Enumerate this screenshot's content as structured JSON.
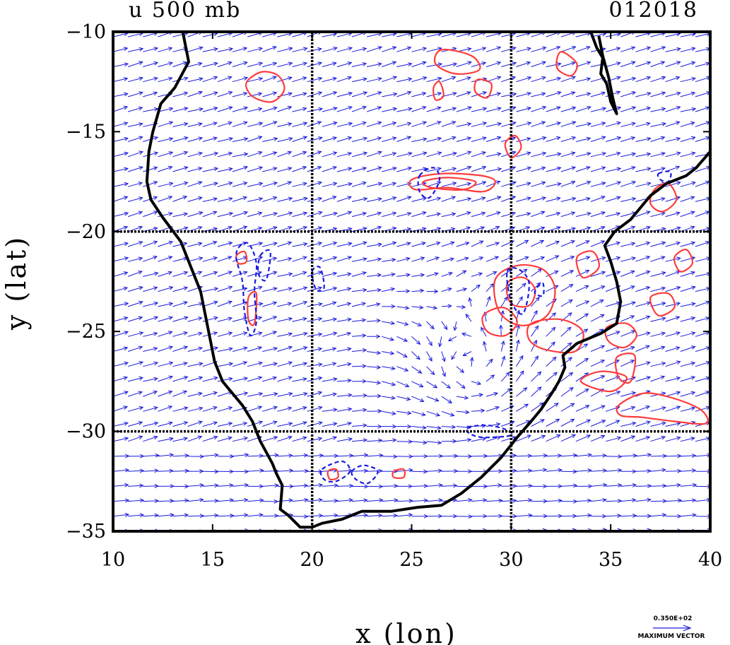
{
  "chart_data": {
    "type": "vector-contour-map",
    "title_left": "u 500 mb",
    "title_right": "012018",
    "xlabel": "x (lon)",
    "ylabel": "y (lat)",
    "xlim": [
      10,
      40
    ],
    "ylim": [
      -35,
      -10
    ],
    "x_ticks": [
      10,
      15,
      20,
      25,
      30,
      35,
      40
    ],
    "y_ticks": [
      -10,
      -15,
      -20,
      -25,
      -30,
      -35
    ],
    "grid_x": [
      20,
      30
    ],
    "grid_y": [
      -20,
      -30
    ],
    "legend": {
      "value": "0.350E+02",
      "label": "MAXIMUM VECTOR"
    },
    "colors": {
      "vectors": "#1a1adb",
      "positive_contours": "#ff3b3b",
      "negative_contours": "#1a1adb",
      "coastline": "#000000",
      "grid": "#000000"
    },
    "coastline": [
      [
        13.5,
        -10
      ],
      [
        13.8,
        -11.5
      ],
      [
        13.1,
        -12.8
      ],
      [
        12.4,
        -13.6
      ],
      [
        12.0,
        -15.0
      ],
      [
        11.8,
        -16.0
      ],
      [
        11.7,
        -17.5
      ],
      [
        11.9,
        -18.4
      ],
      [
        12.5,
        -19.3
      ],
      [
        13.4,
        -20.5
      ],
      [
        14.0,
        -22.0
      ],
      [
        14.4,
        -23.0
      ],
      [
        14.8,
        -25.0
      ],
      [
        15.1,
        -26.5
      ],
      [
        15.5,
        -27.5
      ],
      [
        16.5,
        -28.7
      ],
      [
        17.0,
        -29.5
      ],
      [
        17.4,
        -30.5
      ],
      [
        18.0,
        -31.6
      ],
      [
        18.2,
        -32.1
      ],
      [
        18.5,
        -32.7
      ],
      [
        18.4,
        -33.9
      ],
      [
        18.8,
        -34.2
      ],
      [
        19.4,
        -34.8
      ],
      [
        20.0,
        -34.8
      ],
      [
        20.5,
        -34.6
      ],
      [
        21.5,
        -34.4
      ],
      [
        22.5,
        -34.0
      ],
      [
        24.0,
        -34.0
      ],
      [
        25.3,
        -33.8
      ],
      [
        26.5,
        -33.7
      ],
      [
        27.5,
        -33.1
      ],
      [
        28.5,
        -32.3
      ],
      [
        29.5,
        -31.3
      ],
      [
        30.3,
        -30.3
      ],
      [
        31.0,
        -29.5
      ],
      [
        31.5,
        -28.9
      ],
      [
        32.1,
        -28.0
      ],
      [
        32.4,
        -27.5
      ],
      [
        32.7,
        -26.8
      ],
      [
        32.6,
        -26.2
      ],
      [
        33.3,
        -25.6
      ],
      [
        34.5,
        -25.1
      ],
      [
        35.3,
        -24.6
      ],
      [
        35.5,
        -23.5
      ],
      [
        35.3,
        -22.5
      ],
      [
        35.0,
        -21.5
      ],
      [
        34.7,
        -20.7
      ],
      [
        35.2,
        -20.0
      ],
      [
        36.0,
        -19.4
      ],
      [
        37.0,
        -18.2
      ],
      [
        37.8,
        -17.6
      ],
      [
        38.8,
        -17.2
      ],
      [
        39.3,
        -16.8
      ],
      [
        40.0,
        -16.0
      ]
    ],
    "lake": [
      [
        34.0,
        -10.0
      ],
      [
        34.3,
        -10.8
      ],
      [
        34.6,
        -11.3
      ],
      [
        34.5,
        -12.1
      ],
      [
        34.8,
        -12.6
      ],
      [
        35.0,
        -13.5
      ],
      [
        35.3,
        -14.1
      ],
      [
        35.1,
        -13.3
      ],
      [
        34.9,
        -12.3
      ],
      [
        34.6,
        -11.2
      ],
      [
        34.4,
        -10.2
      ]
    ],
    "vortex_center": [
      28.0,
      -27.0
    ],
    "positive_contours": [
      [
        [
          16.8,
          -12.4
        ],
        [
          17.5,
          -12.0
        ],
        [
          18.3,
          -12.2
        ],
        [
          18.6,
          -12.9
        ],
        [
          18.0,
          -13.5
        ],
        [
          17.1,
          -13.3
        ],
        [
          16.7,
          -12.8
        ]
      ],
      [
        [
          26.5,
          -10.9
        ],
        [
          28.0,
          -11.2
        ],
        [
          28.4,
          -11.9
        ],
        [
          27.2,
          -12.1
        ],
        [
          26.2,
          -11.6
        ]
      ],
      [
        [
          28.3,
          -12.4
        ],
        [
          29.0,
          -12.6
        ],
        [
          28.8,
          -13.3
        ],
        [
          28.2,
          -13.0
        ]
      ],
      [
        [
          32.5,
          -11.0
        ],
        [
          33.3,
          -11.6
        ],
        [
          33.0,
          -12.2
        ],
        [
          32.3,
          -11.8
        ]
      ],
      [
        [
          25.0,
          -17.4
        ],
        [
          26.5,
          -17.1
        ],
        [
          28.5,
          -17.2
        ],
        [
          29.2,
          -17.5
        ],
        [
          28.6,
          -18.0
        ],
        [
          26.8,
          -17.8
        ],
        [
          25.2,
          -17.9
        ]
      ],
      [
        [
          25.6,
          -17.5
        ],
        [
          26.8,
          -17.3
        ],
        [
          28.2,
          -17.5
        ],
        [
          27.6,
          -17.9
        ],
        [
          26.0,
          -17.8
        ]
      ],
      [
        [
          29.7,
          -15.6
        ],
        [
          30.2,
          -15.2
        ],
        [
          30.5,
          -15.8
        ],
        [
          30.0,
          -16.3
        ]
      ],
      [
        [
          29.2,
          -22.4
        ],
        [
          30.3,
          -21.7
        ],
        [
          31.6,
          -21.9
        ],
        [
          32.2,
          -22.9
        ],
        [
          31.8,
          -24.2
        ],
        [
          30.5,
          -24.7
        ],
        [
          29.4,
          -24.0
        ]
      ],
      [
        [
          29.8,
          -22.6
        ],
        [
          30.6,
          -22.3
        ],
        [
          31.2,
          -22.9
        ],
        [
          30.9,
          -23.7
        ],
        [
          30.0,
          -23.6
        ]
      ],
      [
        [
          28.6,
          -24.2
        ],
        [
          29.6,
          -23.8
        ],
        [
          30.3,
          -24.5
        ],
        [
          29.7,
          -25.2
        ],
        [
          28.8,
          -25.0
        ]
      ],
      [
        [
          31.0,
          -24.6
        ],
        [
          32.5,
          -24.4
        ],
        [
          33.6,
          -25.0
        ],
        [
          33.2,
          -26.0
        ],
        [
          31.7,
          -25.9
        ],
        [
          30.9,
          -25.4
        ]
      ],
      [
        [
          33.3,
          -21.3
        ],
        [
          34.1,
          -21.0
        ],
        [
          34.4,
          -21.8
        ],
        [
          33.6,
          -22.3
        ]
      ],
      [
        [
          34.8,
          -24.8
        ],
        [
          35.8,
          -24.6
        ],
        [
          36.3,
          -25.2
        ],
        [
          35.7,
          -25.8
        ],
        [
          34.9,
          -25.5
        ]
      ],
      [
        [
          35.3,
          -26.3
        ],
        [
          36.2,
          -26.2
        ],
        [
          36.0,
          -27.5
        ],
        [
          35.4,
          -27.3
        ]
      ],
      [
        [
          37.0,
          -23.3
        ],
        [
          37.9,
          -23.1
        ],
        [
          38.2,
          -23.8
        ],
        [
          37.4,
          -24.2
        ]
      ],
      [
        [
          37.2,
          -17.9
        ],
        [
          37.9,
          -17.6
        ],
        [
          38.3,
          -18.4
        ],
        [
          37.6,
          -19.0
        ],
        [
          37.0,
          -18.6
        ]
      ],
      [
        [
          38.2,
          -21.3
        ],
        [
          38.8,
          -20.9
        ],
        [
          39.1,
          -21.6
        ],
        [
          38.5,
          -22.0
        ]
      ],
      [
        [
          33.5,
          -27.5
        ],
        [
          34.5,
          -27.0
        ],
        [
          35.8,
          -27.3
        ],
        [
          35.0,
          -28.0
        ]
      ],
      [
        [
          35.4,
          -28.7
        ],
        [
          36.6,
          -28.1
        ],
        [
          38.0,
          -28.3
        ],
        [
          39.5,
          -28.9
        ],
        [
          39.8,
          -29.6
        ],
        [
          38.2,
          -29.5
        ],
        [
          36.6,
          -29.3
        ],
        [
          35.5,
          -29.2
        ]
      ],
      [
        [
          16.2,
          -21.2
        ],
        [
          16.6,
          -21.0
        ],
        [
          16.7,
          -21.5
        ],
        [
          16.3,
          -21.6
        ]
      ],
      [
        [
          16.8,
          -23.3
        ],
        [
          17.2,
          -23.1
        ],
        [
          17.1,
          -24.6
        ],
        [
          16.8,
          -24.4
        ]
      ],
      [
        [
          24.1,
          -32.0
        ],
        [
          24.6,
          -31.9
        ],
        [
          24.6,
          -32.3
        ],
        [
          24.1,
          -32.3
        ]
      ],
      [
        [
          20.8,
          -32.0
        ],
        [
          21.2,
          -31.9
        ],
        [
          21.3,
          -32.3
        ],
        [
          20.9,
          -32.4
        ]
      ],
      [
        [
          26.1,
          -12.8
        ],
        [
          26.4,
          -12.5
        ],
        [
          26.6,
          -13.2
        ],
        [
          26.2,
          -13.4
        ]
      ]
    ],
    "negative_contours": [
      [
        [
          16.3,
          -20.8
        ],
        [
          16.8,
          -20.6
        ],
        [
          17.2,
          -21.6
        ],
        [
          17.1,
          -23.0
        ],
        [
          17.2,
          -24.5
        ],
        [
          16.9,
          -25.2
        ],
        [
          16.6,
          -24.0
        ],
        [
          16.5,
          -22.5
        ],
        [
          16.2,
          -21.4
        ]
      ],
      [
        [
          17.4,
          -21.2
        ],
        [
          17.9,
          -21.0
        ],
        [
          17.7,
          -22.4
        ],
        [
          17.3,
          -22.1
        ]
      ],
      [
        [
          25.4,
          -17.2
        ],
        [
          26.1,
          -16.8
        ],
        [
          26.4,
          -17.4
        ],
        [
          25.9,
          -18.3
        ],
        [
          25.4,
          -18.0
        ]
      ],
      [
        [
          29.8,
          -22.0
        ],
        [
          30.4,
          -21.9
        ],
        [
          30.9,
          -22.6
        ],
        [
          30.6,
          -24.1
        ],
        [
          30.0,
          -23.5
        ]
      ],
      [
        [
          31.3,
          -22.8
        ],
        [
          31.6,
          -22.6
        ],
        [
          31.6,
          -23.2
        ],
        [
          31.2,
          -23.1
        ]
      ],
      [
        [
          27.8,
          -29.8
        ],
        [
          28.8,
          -29.7
        ],
        [
          29.7,
          -29.9
        ],
        [
          30.0,
          -30.2
        ],
        [
          28.6,
          -30.3
        ],
        [
          27.9,
          -30.1
        ]
      ],
      [
        [
          20.5,
          -31.9
        ],
        [
          21.5,
          -31.5
        ],
        [
          21.9,
          -32.0
        ],
        [
          21.2,
          -32.5
        ],
        [
          20.6,
          -32.4
        ]
      ],
      [
        [
          22.0,
          -32.0
        ],
        [
          22.6,
          -31.7
        ],
        [
          23.3,
          -32.0
        ],
        [
          22.8,
          -32.6
        ],
        [
          22.2,
          -32.4
        ]
      ],
      [
        [
          20.0,
          -22.0
        ],
        [
          20.4,
          -21.8
        ],
        [
          20.6,
          -22.8
        ],
        [
          20.2,
          -22.9
        ]
      ],
      [
        [
          37.4,
          -17.1
        ],
        [
          38.0,
          -17.0
        ],
        [
          37.9,
          -17.5
        ],
        [
          37.5,
          -17.4
        ]
      ]
    ]
  }
}
